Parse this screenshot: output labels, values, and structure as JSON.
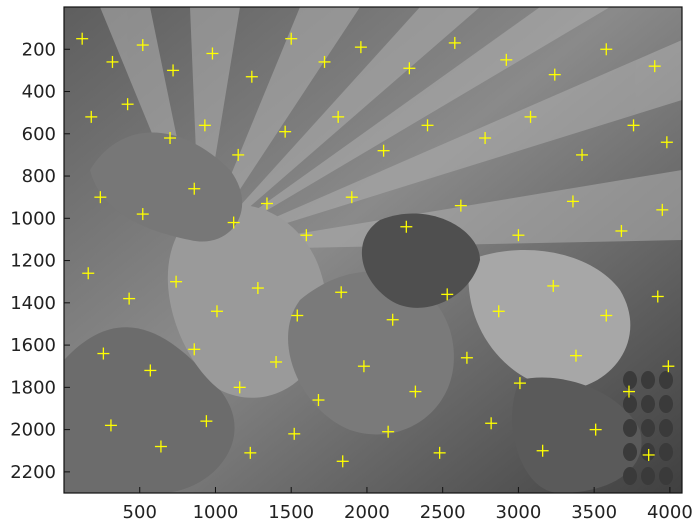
{
  "figure": {
    "type": "image-with-keypoint-overlay",
    "image_description_tag": "grayscale-photo-of-mural",
    "marker_symbol": "+",
    "marker_color": "#ffff00",
    "axes": {
      "x_ticks": [
        "500",
        "1000",
        "1500",
        "2000",
        "2500",
        "3000",
        "3500",
        "4000"
      ],
      "y_ticks": [
        "200",
        "400",
        "600",
        "800",
        "1000",
        "1200",
        "1400",
        "1600",
        "1800",
        "2000",
        "2200"
      ],
      "x_range": [
        0,
        4080
      ],
      "y_range": [
        0,
        2300
      ],
      "y_inverted": true,
      "grid": false
    }
  },
  "chart_data": {
    "type": "scatter",
    "title": "",
    "xlabel": "",
    "ylabel": "",
    "xlim": [
      0,
      4080
    ],
    "ylim": [
      2300,
      0
    ],
    "series": [
      {
        "marker": "+",
        "color": "#ffff00",
        "points": [
          [
            120,
            150
          ],
          [
            320,
            260
          ],
          [
            520,
            180
          ],
          [
            720,
            300
          ],
          [
            980,
            220
          ],
          [
            1240,
            330
          ],
          [
            1500,
            150
          ],
          [
            1720,
            260
          ],
          [
            1960,
            190
          ],
          [
            2280,
            290
          ],
          [
            2580,
            170
          ],
          [
            2920,
            250
          ],
          [
            3240,
            320
          ],
          [
            3580,
            200
          ],
          [
            3900,
            280
          ],
          [
            180,
            520
          ],
          [
            420,
            460
          ],
          [
            700,
            620
          ],
          [
            930,
            560
          ],
          [
            1150,
            700
          ],
          [
            1460,
            590
          ],
          [
            1810,
            520
          ],
          [
            2110,
            680
          ],
          [
            2400,
            560
          ],
          [
            2780,
            620
          ],
          [
            3080,
            520
          ],
          [
            3420,
            700
          ],
          [
            3760,
            560
          ],
          [
            3980,
            640
          ],
          [
            240,
            900
          ],
          [
            520,
            980
          ],
          [
            860,
            860
          ],
          [
            1120,
            1020
          ],
          [
            1340,
            930
          ],
          [
            1600,
            1080
          ],
          [
            1900,
            900
          ],
          [
            2260,
            1040
          ],
          [
            2620,
            940
          ],
          [
            3000,
            1080
          ],
          [
            3360,
            920
          ],
          [
            3680,
            1060
          ],
          [
            3950,
            960
          ],
          [
            160,
            1260
          ],
          [
            430,
            1380
          ],
          [
            740,
            1300
          ],
          [
            1010,
            1440
          ],
          [
            1280,
            1330
          ],
          [
            1540,
            1460
          ],
          [
            1830,
            1350
          ],
          [
            2170,
            1480
          ],
          [
            2530,
            1360
          ],
          [
            2870,
            1440
          ],
          [
            3230,
            1320
          ],
          [
            3580,
            1460
          ],
          [
            3920,
            1370
          ],
          [
            260,
            1640
          ],
          [
            570,
            1720
          ],
          [
            860,
            1620
          ],
          [
            1160,
            1800
          ],
          [
            1400,
            1680
          ],
          [
            1680,
            1860
          ],
          [
            1980,
            1700
          ],
          [
            2320,
            1820
          ],
          [
            2660,
            1660
          ],
          [
            3010,
            1780
          ],
          [
            3380,
            1650
          ],
          [
            3730,
            1820
          ],
          [
            3990,
            1700
          ],
          [
            310,
            1980
          ],
          [
            640,
            2080
          ],
          [
            940,
            1960
          ],
          [
            1230,
            2110
          ],
          [
            1520,
            2020
          ],
          [
            1840,
            2150
          ],
          [
            2140,
            2010
          ],
          [
            2480,
            2110
          ],
          [
            2820,
            1970
          ],
          [
            3160,
            2100
          ],
          [
            3510,
            2000
          ],
          [
            3860,
            2120
          ]
        ]
      }
    ]
  }
}
